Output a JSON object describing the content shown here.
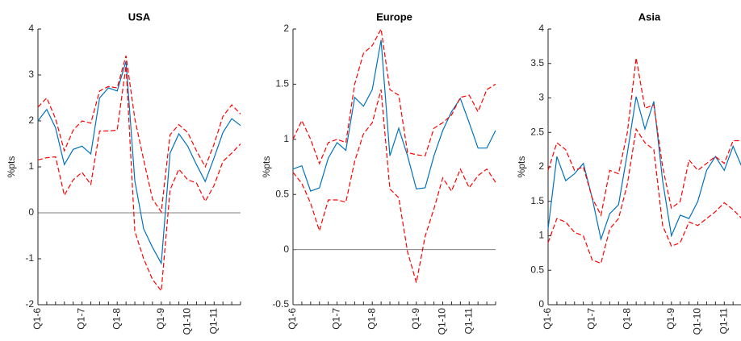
{
  "chart_data": [
    {
      "type": "line",
      "title": "USA",
      "ylabel": "%pts",
      "categories": [
        "Q1-6",
        null,
        null,
        null,
        null,
        "Q1-7",
        null,
        null,
        null,
        "Q1-8",
        null,
        null,
        null,
        null,
        "Q1-9",
        null,
        null,
        "Q1-10",
        null,
        null,
        "Q1-11",
        null,
        null,
        null
      ],
      "series": [
        {
          "color": "#0072bd",
          "dashed": false,
          "values": [
            2.0,
            2.25,
            1.85,
            1.05,
            1.38,
            1.45,
            1.28,
            2.5,
            2.72,
            2.65,
            3.3,
            0.7,
            -0.35,
            -0.75,
            -1.1,
            1.3,
            1.72,
            1.45,
            1.05,
            0.68,
            1.2,
            1.75,
            2.05,
            1.9
          ]
        },
        {
          "color": "#ff0000",
          "dashed": true,
          "values": [
            2.3,
            2.5,
            2.05,
            1.35,
            1.8,
            2.0,
            1.95,
            2.65,
            2.75,
            2.72,
            3.42,
            2.05,
            1.15,
            0.3,
            0.02,
            1.7,
            1.92,
            1.75,
            1.35,
            1.0,
            1.5,
            2.1,
            2.35,
            2.15
          ]
        },
        {
          "color": "#ff0000",
          "dashed": true,
          "values": [
            1.15,
            1.2,
            1.22,
            0.38,
            0.72,
            0.88,
            0.62,
            1.78,
            1.78,
            1.8,
            3.2,
            -0.4,
            -1.0,
            -1.45,
            -1.7,
            0.5,
            0.95,
            0.72,
            0.65,
            0.25,
            0.6,
            1.12,
            1.3,
            1.5
          ]
        }
      ],
      "ylim": [
        -2,
        4
      ],
      "yticks": [
        -2,
        -1,
        0,
        1,
        2,
        3,
        4
      ],
      "zero_line": true
    },
    {
      "type": "line",
      "title": "Europe",
      "ylabel": "%pts",
      "categories": [
        "Q1-6",
        null,
        null,
        null,
        null,
        "Q1-7",
        null,
        null,
        null,
        "Q1-8",
        null,
        null,
        null,
        null,
        "Q1-9",
        null,
        null,
        "Q1-10",
        null,
        null,
        "Q1-11",
        null,
        null,
        null
      ],
      "series": [
        {
          "color": "#0072bd",
          "dashed": false,
          "values": [
            0.73,
            0.76,
            0.53,
            0.56,
            0.83,
            0.97,
            0.9,
            1.38,
            1.3,
            1.45,
            1.9,
            0.85,
            1.1,
            0.85,
            0.55,
            0.56,
            0.85,
            1.08,
            1.25,
            1.37,
            1.15,
            0.92,
            0.92,
            1.08
          ]
        },
        {
          "color": "#ff0000",
          "dashed": true,
          "values": [
            1.0,
            1.17,
            1.0,
            0.78,
            0.97,
            1.0,
            0.97,
            1.5,
            1.78,
            1.85,
            2.0,
            1.45,
            1.4,
            0.88,
            0.86,
            0.85,
            1.1,
            1.15,
            1.22,
            1.38,
            1.4,
            1.25,
            1.45,
            1.5
          ]
        },
        {
          "color": "#ff0000",
          "dashed": true,
          "values": [
            0.7,
            0.6,
            0.42,
            0.17,
            0.45,
            0.45,
            0.43,
            0.8,
            1.05,
            1.15,
            1.45,
            0.55,
            0.47,
            -0.02,
            -0.3,
            0.12,
            0.37,
            0.65,
            0.53,
            0.73,
            0.56,
            0.67,
            0.73,
            0.61
          ]
        }
      ],
      "ylim": [
        -0.5,
        2
      ],
      "yticks": [
        -0.5,
        0,
        0.5,
        1,
        1.5,
        2
      ],
      "zero_line": true
    },
    {
      "type": "line",
      "title": "Asia",
      "ylabel": "%pts",
      "categories": [
        "Q1-6",
        null,
        null,
        null,
        null,
        "Q1-7",
        null,
        null,
        null,
        "Q1-8",
        null,
        null,
        null,
        null,
        "Q1-9",
        null,
        null,
        "Q1-10",
        null,
        null,
        "Q1-11",
        null,
        null,
        null
      ],
      "series": [
        {
          "color": "#0072bd",
          "dashed": false,
          "values": [
            1.1,
            2.15,
            1.8,
            1.9,
            2.05,
            1.55,
            0.95,
            1.32,
            1.45,
            2.2,
            3.02,
            2.55,
            2.95,
            1.8,
            1.0,
            1.3,
            1.25,
            1.5,
            1.95,
            2.15,
            1.95,
            2.3,
            2.0,
            1.9
          ]
        },
        {
          "color": "#ff0000",
          "dashed": true,
          "values": [
            1.95,
            2.35,
            2.25,
            1.95,
            2.0,
            1.55,
            1.3,
            1.95,
            1.9,
            2.5,
            3.58,
            2.85,
            2.9,
            2.0,
            1.4,
            1.5,
            2.1,
            1.95,
            2.05,
            2.15,
            2.05,
            2.38,
            2.38,
            2.3
          ]
        },
        {
          "color": "#ff0000",
          "dashed": true,
          "values": [
            0.9,
            1.25,
            1.2,
            1.05,
            1.0,
            0.65,
            0.6,
            1.1,
            1.25,
            1.75,
            2.55,
            2.35,
            2.25,
            1.15,
            0.85,
            0.9,
            1.2,
            1.15,
            1.25,
            1.35,
            1.48,
            1.38,
            1.25,
            1.2
          ]
        }
      ],
      "ylim": [
        0,
        4
      ],
      "yticks": [
        0,
        0.5,
        1,
        1.5,
        2,
        2.5,
        3,
        3.5,
        4
      ],
      "zero_line": false
    }
  ]
}
